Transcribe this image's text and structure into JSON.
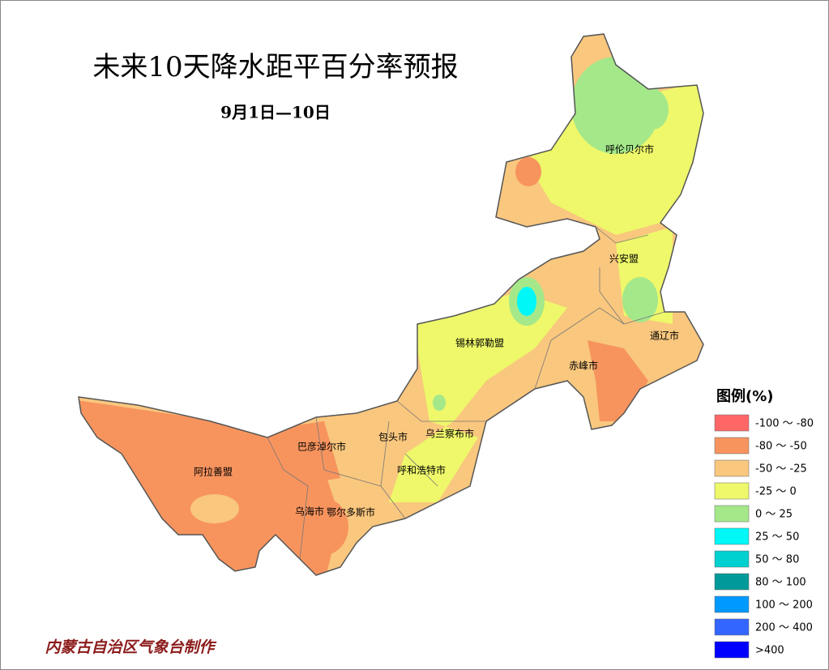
{
  "title": "未来10天降水距平百分率预报",
  "subtitle": "9月1日—10日",
  "regions": [
    "呼伦贝尔市",
    "兴安盟",
    "通辽市",
    "锡林郭勒盟",
    "赤峰市",
    "乌兰察布市",
    "包头市",
    "巴彦淖尔市",
    "呼和浩特市",
    "阿拉善盟",
    "乌海市",
    "鄂尔多斯市"
  ],
  "legend": {
    "title": "图例(%)",
    "items": [
      {
        "label": "-100 ～ -80",
        "color": "#ff6666"
      },
      {
        "label": "-80 ～ -50",
        "color": "#f7945e"
      },
      {
        "label": "-50 ～ -25",
        "color": "#f9c77e"
      },
      {
        "label": "-25 ～ 0",
        "color": "#eef86a"
      },
      {
        "label": "0 ～ 25",
        "color": "#a4e88a"
      },
      {
        "label": "25 ～ 50",
        "color": "#00f7f7"
      },
      {
        "label": "50 ～ 80",
        "color": "#00d0d0"
      },
      {
        "label": "80 ～ 100",
        "color": "#009a9a"
      },
      {
        "label": "100 ～ 200",
        "color": "#0099ff"
      },
      {
        "label": "200 ～ 400",
        "color": "#3366ff"
      },
      {
        "label": ">400",
        "color": "#0000ff"
      }
    ]
  },
  "credit": "内蒙古自治区气象台制作"
}
